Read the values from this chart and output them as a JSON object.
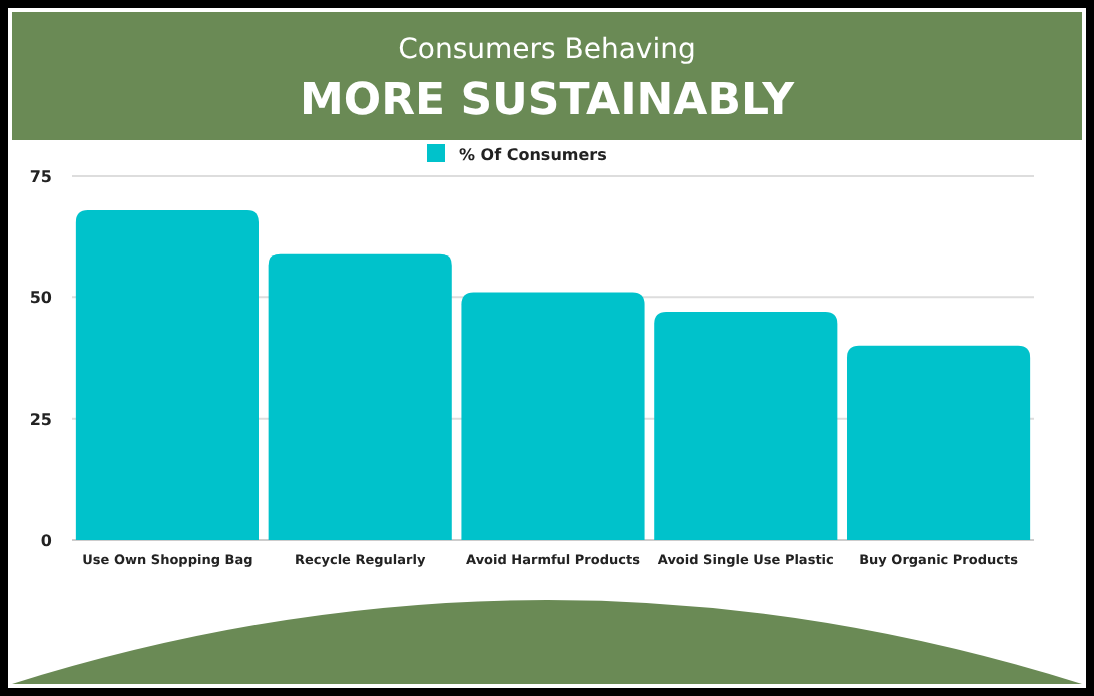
{
  "chart_data": {
    "type": "bar",
    "title": "Consumers Behaving",
    "subtitle": "MORE SUSTAINABLY",
    "categories": [
      "Use Own Shopping Bag",
      "Recycle Regularly",
      "Avoid Harmful Products",
      "Avoid Single Use Plastic",
      "Buy Organic Products"
    ],
    "series": [
      {
        "name": "% Of Consumers",
        "color": "#00c2cb",
        "values": [
          68,
          59,
          51,
          47,
          40
        ]
      }
    ],
    "ylim": [
      0,
      75
    ],
    "yticks": [
      0,
      25,
      50,
      75
    ],
    "grid": "y",
    "legend": "top"
  }
}
